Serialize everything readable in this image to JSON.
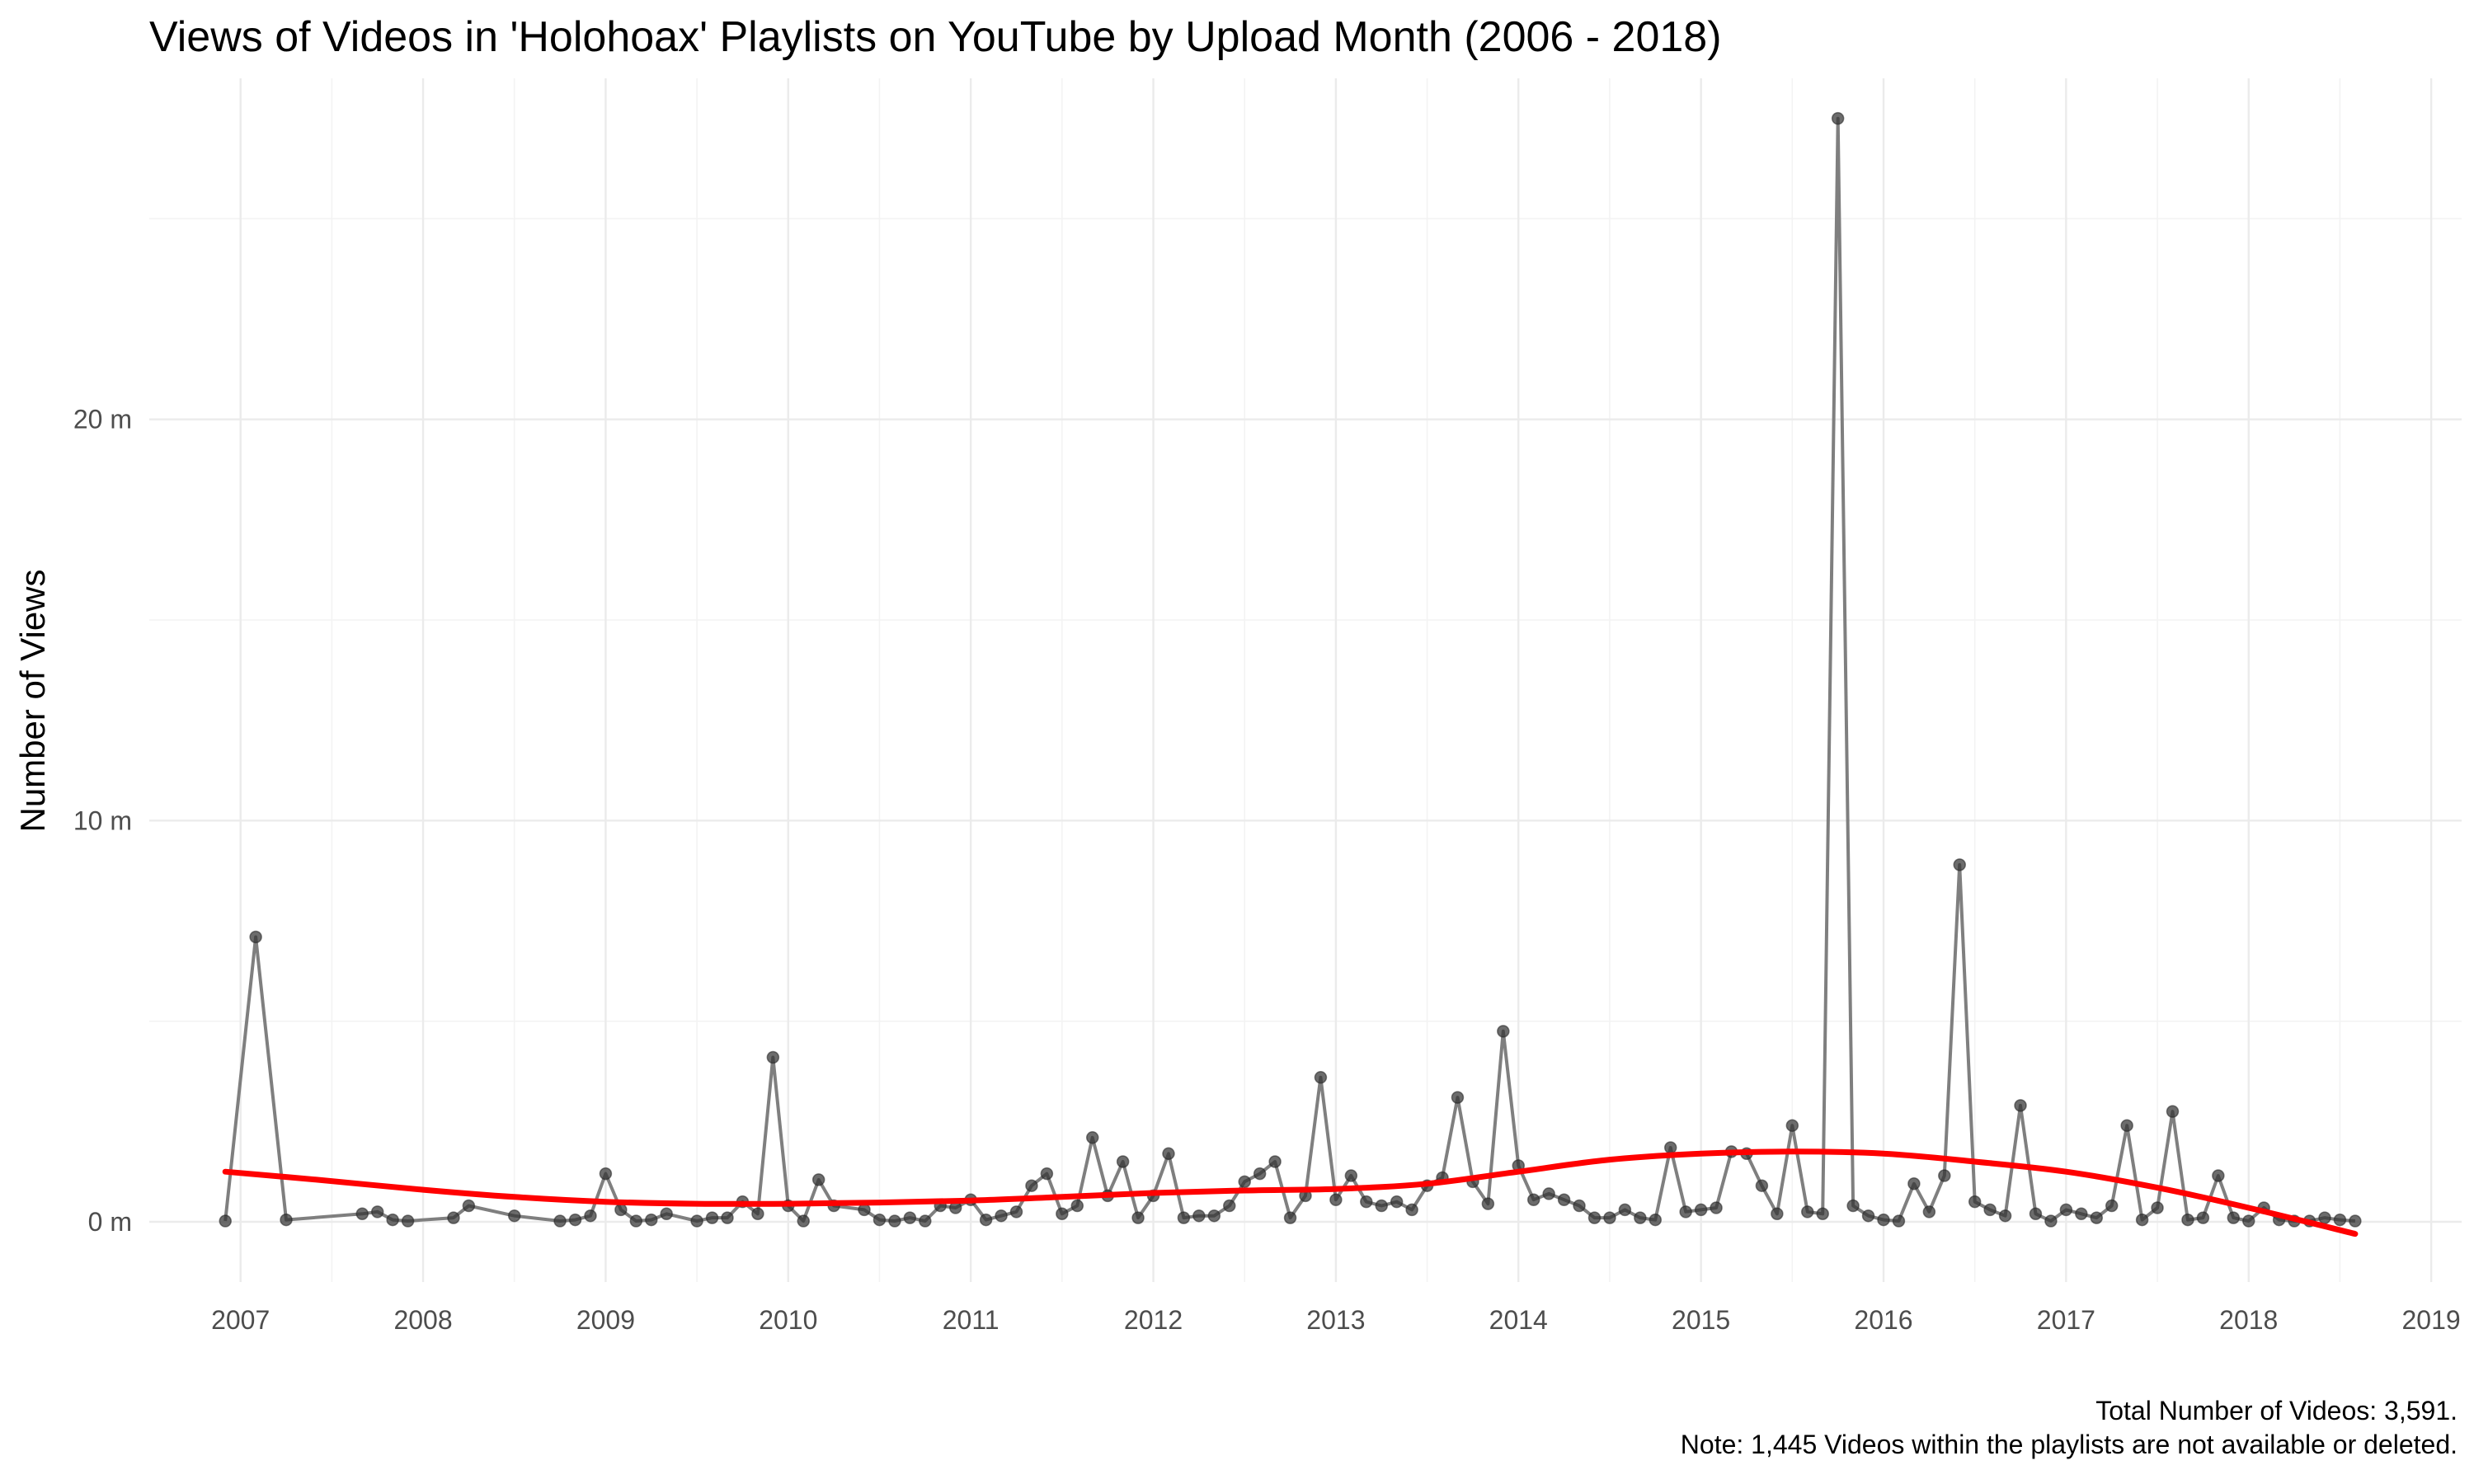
{
  "chart_data": {
    "type": "line",
    "title": "Views of Videos in 'Holohoax' Playlists on YouTube by Upload Month (2006 - 2018)",
    "xlabel": "",
    "ylabel": "Number of Views",
    "x_ticks": [
      "2007",
      "2008",
      "2009",
      "2010",
      "2011",
      "2012",
      "2013",
      "2014",
      "2015",
      "2016",
      "2017",
      "2018",
      "2019"
    ],
    "y_ticks": [
      "0 m",
      "10 m",
      "20 m"
    ],
    "xlim": [
      "2006-07-01",
      "2019-03-01"
    ],
    "ylim": [
      -1.5,
      28.5
    ],
    "y_unit": "million views",
    "grid": true,
    "caption": [
      "Total Number of Videos: 3,591.",
      "Note: 1,445 Videos within the playlists are not available or deleted."
    ],
    "colors": {
      "line": "#7f7f7f",
      "points": "#333333",
      "trend": "#ff0000"
    },
    "series": [
      {
        "points": [
          [
            "2006-12",
            0.02
          ],
          [
            "2007-02",
            7.1
          ],
          [
            "2007-04",
            0.05
          ],
          [
            "2007-09",
            0.2
          ],
          [
            "2007-10",
            0.25
          ],
          [
            "2007-11",
            0.05
          ],
          [
            "2007-12",
            0.02
          ],
          [
            "2008-03",
            0.1
          ],
          [
            "2008-04",
            0.4
          ],
          [
            "2008-07",
            0.15
          ],
          [
            "2008-10",
            0.02
          ],
          [
            "2008-11",
            0.05
          ],
          [
            "2008-12",
            0.15
          ],
          [
            "2009-01",
            1.2
          ],
          [
            "2009-02",
            0.3
          ],
          [
            "2009-03",
            0.02
          ],
          [
            "2009-04",
            0.05
          ],
          [
            "2009-05",
            0.2
          ],
          [
            "2009-07",
            0.02
          ],
          [
            "2009-08",
            0.1
          ],
          [
            "2009-09",
            0.1
          ],
          [
            "2009-10",
            0.5
          ],
          [
            "2009-11",
            0.2
          ],
          [
            "2009-12",
            4.1
          ],
          [
            "2010-01",
            0.4
          ],
          [
            "2010-02",
            0.02
          ],
          [
            "2010-03",
            1.05
          ],
          [
            "2010-04",
            0.4
          ],
          [
            "2010-06",
            0.3
          ],
          [
            "2010-07",
            0.05
          ],
          [
            "2010-08",
            0.02
          ],
          [
            "2010-09",
            0.1
          ],
          [
            "2010-10",
            0.02
          ],
          [
            "2010-11",
            0.4
          ],
          [
            "2010-12",
            0.35
          ],
          [
            "2011-01",
            0.55
          ],
          [
            "2011-02",
            0.05
          ],
          [
            "2011-03",
            0.15
          ],
          [
            "2011-04",
            0.25
          ],
          [
            "2011-05",
            0.9
          ],
          [
            "2011-06",
            1.2
          ],
          [
            "2011-07",
            0.2
          ],
          [
            "2011-08",
            0.4
          ],
          [
            "2011-09",
            2.1
          ],
          [
            "2011-10",
            0.65
          ],
          [
            "2011-11",
            1.5
          ],
          [
            "2011-12",
            0.1
          ],
          [
            "2012-01",
            0.65
          ],
          [
            "2012-02",
            1.7
          ],
          [
            "2012-03",
            0.1
          ],
          [
            "2012-04",
            0.15
          ],
          [
            "2012-05",
            0.15
          ],
          [
            "2012-06",
            0.4
          ],
          [
            "2012-07",
            1.0
          ],
          [
            "2012-08",
            1.2
          ],
          [
            "2012-09",
            1.5
          ],
          [
            "2012-10",
            0.1
          ],
          [
            "2012-11",
            0.65
          ],
          [
            "2012-12",
            3.6
          ],
          [
            "2013-01",
            0.55
          ],
          [
            "2013-02",
            1.15
          ],
          [
            "2013-03",
            0.5
          ],
          [
            "2013-04",
            0.4
          ],
          [
            "2013-05",
            0.5
          ],
          [
            "2013-06",
            0.3
          ],
          [
            "2013-07",
            0.9
          ],
          [
            "2013-08",
            1.1
          ],
          [
            "2013-09",
            3.1
          ],
          [
            "2013-10",
            1.0
          ],
          [
            "2013-11",
            0.45
          ],
          [
            "2013-12",
            4.75
          ],
          [
            "2014-01",
            1.4
          ],
          [
            "2014-02",
            0.55
          ],
          [
            "2014-03",
            0.7
          ],
          [
            "2014-04",
            0.55
          ],
          [
            "2014-05",
            0.4
          ],
          [
            "2014-06",
            0.1
          ],
          [
            "2014-07",
            0.1
          ],
          [
            "2014-08",
            0.3
          ],
          [
            "2014-09",
            0.1
          ],
          [
            "2014-10",
            0.05
          ],
          [
            "2014-11",
            1.85
          ],
          [
            "2014-12",
            0.25
          ],
          [
            "2015-01",
            0.3
          ],
          [
            "2015-02",
            0.35
          ],
          [
            "2015-03",
            1.75
          ],
          [
            "2015-04",
            1.7
          ],
          [
            "2015-05",
            0.9
          ],
          [
            "2015-06",
            0.2
          ],
          [
            "2015-07",
            2.4
          ],
          [
            "2015-08",
            0.25
          ],
          [
            "2015-09",
            0.2
          ],
          [
            "2015-10",
            27.5
          ],
          [
            "2015-11",
            0.4
          ],
          [
            "2015-12",
            0.15
          ],
          [
            "2016-01",
            0.05
          ],
          [
            "2016-02",
            0.02
          ],
          [
            "2016-03",
            0.95
          ],
          [
            "2016-04",
            0.25
          ],
          [
            "2016-05",
            1.15
          ],
          [
            "2016-06",
            8.9
          ],
          [
            "2016-07",
            0.5
          ],
          [
            "2016-08",
            0.3
          ],
          [
            "2016-09",
            0.15
          ],
          [
            "2016-10",
            2.9
          ],
          [
            "2016-11",
            0.2
          ],
          [
            "2016-12",
            0.02
          ],
          [
            "2017-01",
            0.3
          ],
          [
            "2017-02",
            0.2
          ],
          [
            "2017-03",
            0.1
          ],
          [
            "2017-04",
            0.4
          ],
          [
            "2017-05",
            2.4
          ],
          [
            "2017-06",
            0.05
          ],
          [
            "2017-07",
            0.35
          ],
          [
            "2017-08",
            2.75
          ],
          [
            "2017-09",
            0.05
          ],
          [
            "2017-10",
            0.1
          ],
          [
            "2017-11",
            1.15
          ],
          [
            "2017-12",
            0.1
          ],
          [
            "2018-01",
            0.02
          ],
          [
            "2018-02",
            0.35
          ],
          [
            "2018-03",
            0.05
          ],
          [
            "2018-04",
            0.02
          ],
          [
            "2018-05",
            0.02
          ],
          [
            "2018-06",
            0.1
          ],
          [
            "2018-07",
            0.05
          ],
          [
            "2018-08",
            0.02
          ]
        ]
      },
      {
        "type": "smooth",
        "points": [
          [
            "2006-12",
            1.25
          ],
          [
            "2007-06",
            1.05
          ],
          [
            "2008-01",
            0.8
          ],
          [
            "2008-07",
            0.62
          ],
          [
            "2009-01",
            0.5
          ],
          [
            "2009-07",
            0.45
          ],
          [
            "2010-01",
            0.45
          ],
          [
            "2010-07",
            0.48
          ],
          [
            "2011-01",
            0.53
          ],
          [
            "2011-07",
            0.62
          ],
          [
            "2012-01",
            0.72
          ],
          [
            "2012-07",
            0.78
          ],
          [
            "2013-01",
            0.82
          ],
          [
            "2013-07",
            0.95
          ],
          [
            "2014-01",
            1.25
          ],
          [
            "2014-07",
            1.55
          ],
          [
            "2015-01",
            1.7
          ],
          [
            "2015-07",
            1.75
          ],
          [
            "2016-01",
            1.7
          ],
          [
            "2016-07",
            1.5
          ],
          [
            "2017-01",
            1.25
          ],
          [
            "2017-07",
            0.85
          ],
          [
            "2018-01",
            0.35
          ],
          [
            "2018-08",
            -0.3
          ]
        ]
      }
    ]
  }
}
